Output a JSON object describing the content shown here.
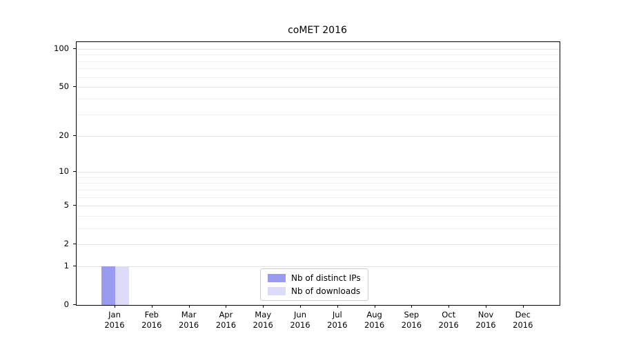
{
  "chart_data": {
    "type": "bar",
    "title": "coMET 2016",
    "categories": [
      "Jan",
      "Feb",
      "Mar",
      "Apr",
      "May",
      "Jun",
      "Jul",
      "Aug",
      "Sep",
      "Oct",
      "Nov",
      "Dec"
    ],
    "year": "2016",
    "series": [
      {
        "name": "Nb of distinct IPs",
        "color": "#9a9af0",
        "values": [
          1,
          0,
          0,
          0,
          0,
          0,
          0,
          0,
          0,
          0,
          0,
          0
        ]
      },
      {
        "name": "Nb of downloads",
        "color": "#dddcf8",
        "values": [
          1,
          0,
          0,
          0,
          0,
          0,
          0,
          0,
          0,
          0,
          0,
          0
        ]
      }
    ],
    "yticks": [
      0,
      1,
      2,
      5,
      10,
      20,
      50,
      100
    ],
    "major_gridlines": [
      1,
      2,
      5,
      10,
      20,
      50,
      100
    ],
    "minor_gridlines": [
      3,
      4,
      6,
      7,
      8,
      9,
      30,
      40,
      60,
      70,
      80,
      90
    ],
    "scale": "log1p",
    "ylim": [
      0,
      100
    ],
    "grid": true,
    "legend_position": "lower center"
  }
}
